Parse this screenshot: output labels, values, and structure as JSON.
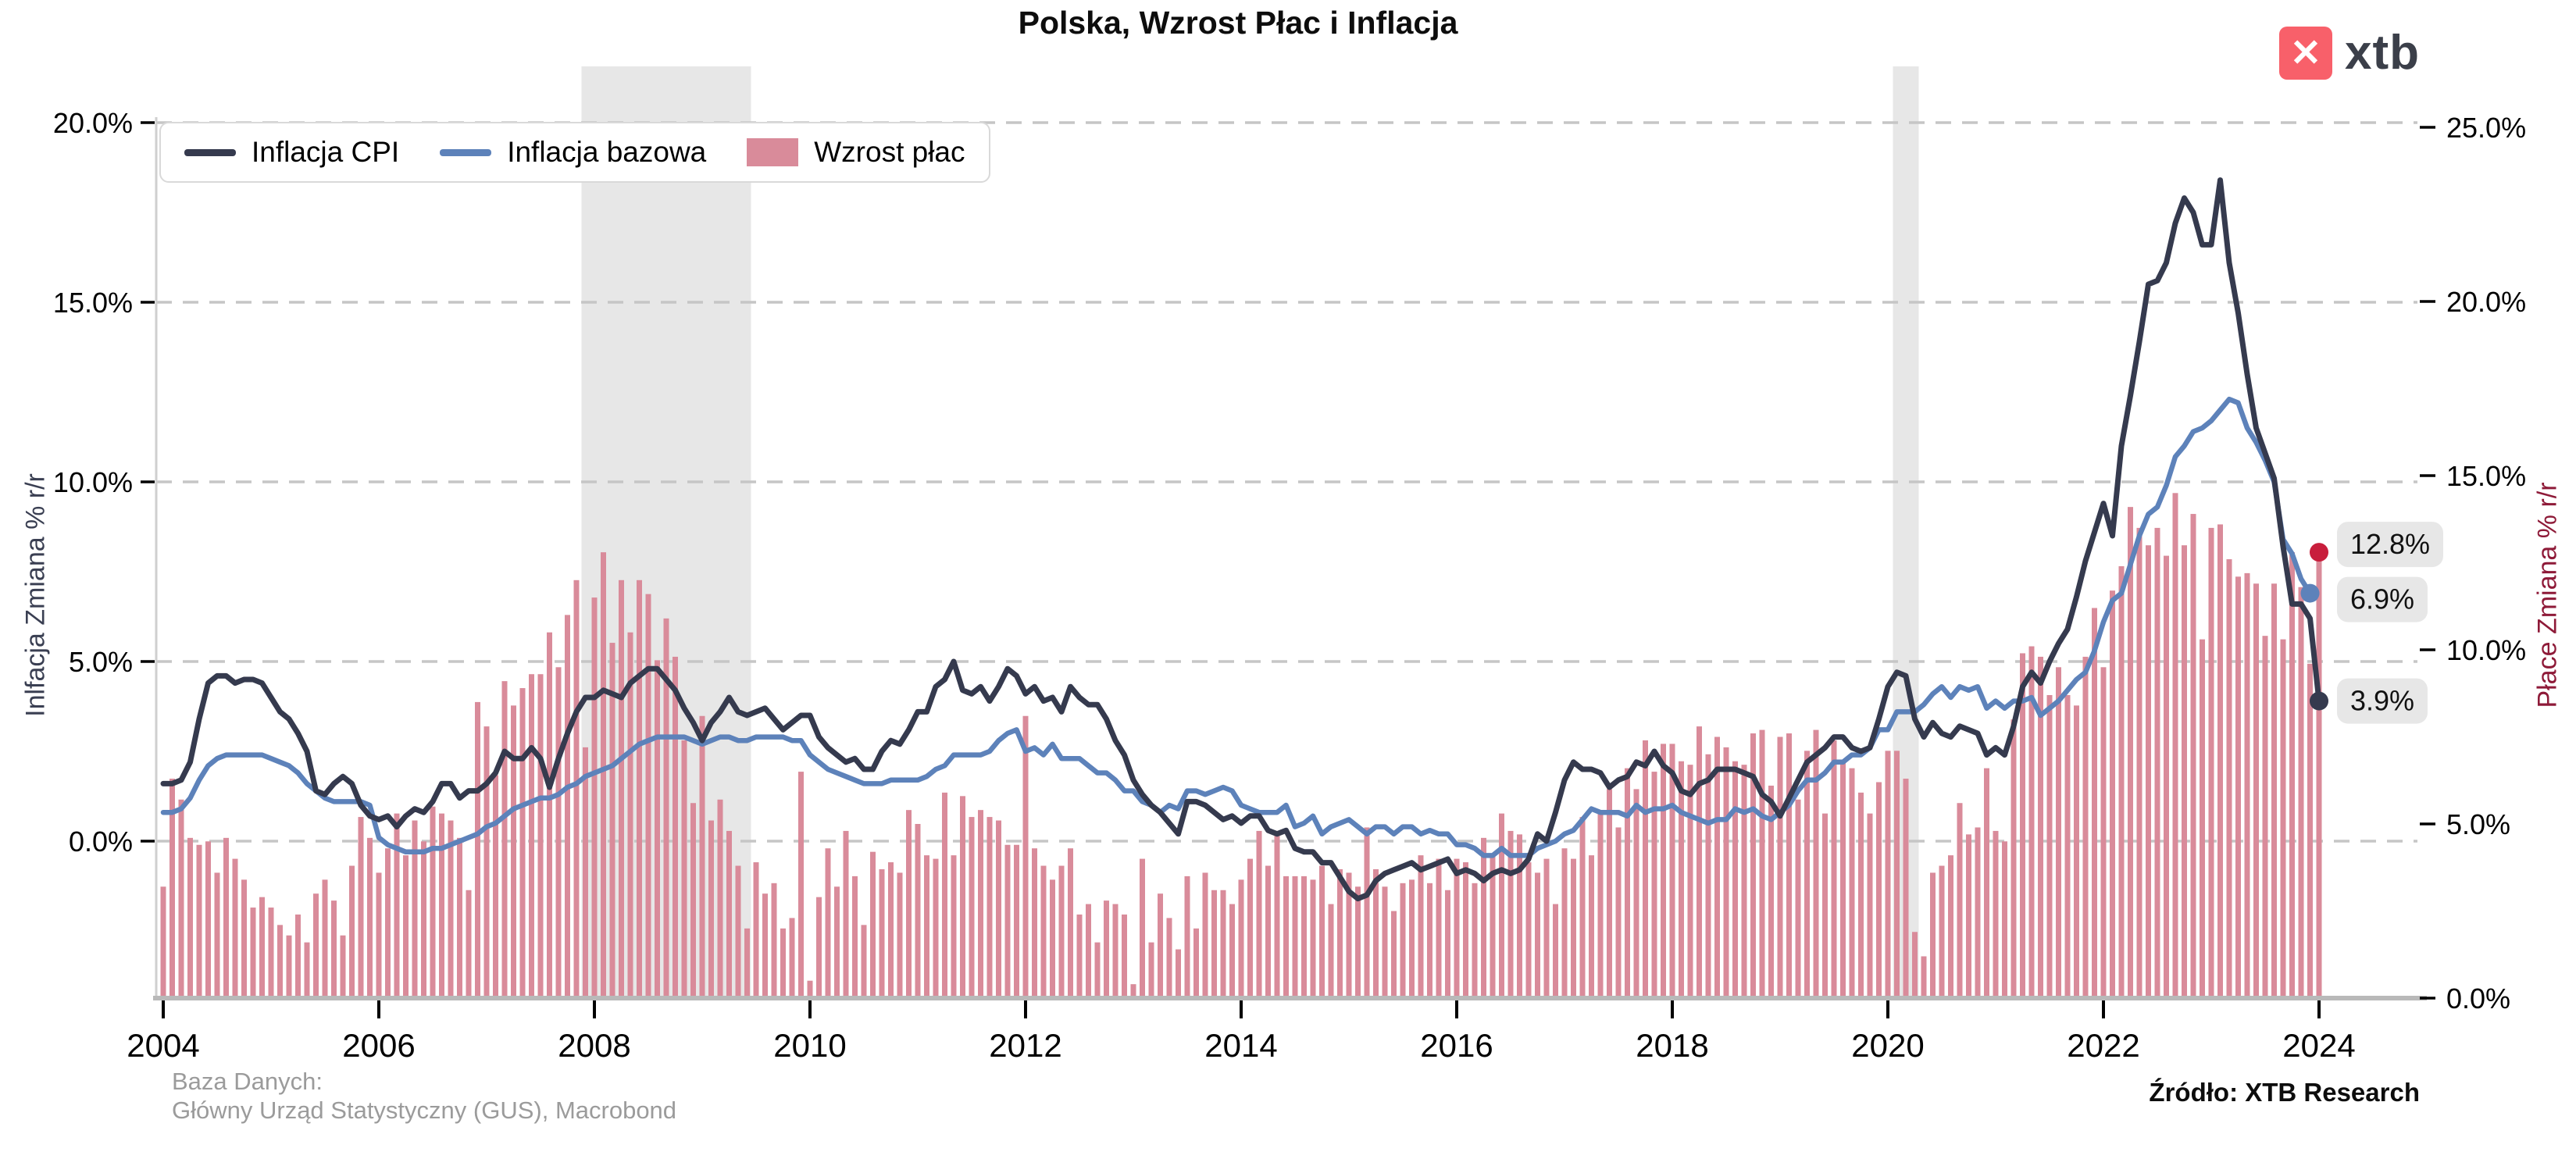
{
  "header": {
    "title": "Polska, Wzrost Płac i Inflacja",
    "logo_text": "xtb",
    "logo_color": "#f8606a",
    "logo_icon": "✕"
  },
  "legend": [
    {
      "label": "Inflacja CPI",
      "color": "#353a4e",
      "type": "line"
    },
    {
      "label": "Inflacja bazowa",
      "color": "#5d82ba",
      "type": "line"
    },
    {
      "label": "Wzrost płac",
      "color": "#d98b9a",
      "type": "bar"
    }
  ],
  "axes": {
    "left": {
      "title": "Inlfacja Zmiana % r/r",
      "title_color": "#3a3f52",
      "tick_labels": [
        "20.0%",
        "15.0%",
        "10.0%",
        "5.0%",
        "0.0%"
      ],
      "tick_values": [
        20,
        15,
        10,
        5,
        0
      ]
    },
    "right": {
      "title": "Płace Zmiana % r/r",
      "title_color": "#8e1a38",
      "tick_labels": [
        "25.0%",
        "20.0%",
        "15.0%",
        "10.0%",
        "5.0%",
        "0.0%"
      ],
      "tick_values": [
        25,
        20,
        15,
        10,
        5,
        0
      ]
    },
    "x": {
      "tick_labels": [
        "2004",
        "2006",
        "2008",
        "2010",
        "2012",
        "2014",
        "2016",
        "2018",
        "2020",
        "2022",
        "2024"
      ],
      "tick_values": [
        2004,
        2006,
        2008,
        2010,
        2012,
        2014,
        2016,
        2018,
        2020,
        2022,
        2024
      ]
    }
  },
  "annotations": [
    {
      "series": "Wzrost płac",
      "label": "12.8%",
      "value": 12.8,
      "axis": "right",
      "dot_color": "#c81e3c",
      "dy": -10
    },
    {
      "series": "Inflacja bazowa",
      "label": "6.9%",
      "value": 6.9,
      "axis": "left",
      "dot_color": "#5d82ba",
      "dy": 8
    },
    {
      "series": "Inflacja CPI",
      "label": "3.9%",
      "value": 3.9,
      "axis": "left",
      "dot_color": "#353a4e",
      "dy": 0
    }
  ],
  "footer": {
    "left_line1": "Baza Danych:",
    "left_line2": "Główny Urząd Statystyczny (GUS), Macrobond",
    "right": "Źródło: XTB Research"
  },
  "chart_data": {
    "type": "mixed",
    "title": "Polska, Wzrost Płac i Inflacja",
    "frequency": "monthly",
    "x_start": "2004-01",
    "x_end": "2024-01",
    "left_axis_label": "Inlfacja Zmiana % r/r",
    "right_axis_label": "Płace Zmiana % r/r",
    "left_axis_ticks": [
      0,
      5,
      10,
      15,
      20
    ],
    "right_axis_ticks": [
      0,
      5,
      10,
      15,
      20,
      25
    ],
    "grid": "horizontal-dashed",
    "legend_position": "top-left-inside",
    "recession_bands": [
      {
        "start": "2007-12",
        "end": "2009-06"
      },
      {
        "start": "2020-02",
        "end": "2020-04"
      }
    ],
    "series": [
      {
        "name": "Inflacja CPI",
        "type": "line",
        "axis": "left",
        "color": "#353a4e",
        "values": [
          1.6,
          1.6,
          1.7,
          2.2,
          3.4,
          4.4,
          4.6,
          4.6,
          4.4,
          4.5,
          4.5,
          4.4,
          4.0,
          3.6,
          3.4,
          3.0,
          2.5,
          1.4,
          1.3,
          1.6,
          1.8,
          1.6,
          1.0,
          0.7,
          0.6,
          0.7,
          0.4,
          0.7,
          0.9,
          0.8,
          1.1,
          1.6,
          1.6,
          1.2,
          1.4,
          1.4,
          1.6,
          1.9,
          2.5,
          2.3,
          2.3,
          2.6,
          2.3,
          1.5,
          2.3,
          3.0,
          3.6,
          4.0,
          4.0,
          4.2,
          4.1,
          4.0,
          4.4,
          4.6,
          4.8,
          4.8,
          4.5,
          4.2,
          3.7,
          3.3,
          2.8,
          3.3,
          3.6,
          4.0,
          3.6,
          3.5,
          3.6,
          3.7,
          3.4,
          3.1,
          3.3,
          3.5,
          3.5,
          2.9,
          2.6,
          2.4,
          2.2,
          2.3,
          2.0,
          2.0,
          2.5,
          2.8,
          2.7,
          3.1,
          3.6,
          3.6,
          4.3,
          4.5,
          5.0,
          4.2,
          4.1,
          4.3,
          3.9,
          4.3,
          4.8,
          4.6,
          4.1,
          4.3,
          3.9,
          4.0,
          3.6,
          4.3,
          4.0,
          3.8,
          3.8,
          3.4,
          2.8,
          2.4,
          1.7,
          1.3,
          1.0,
          0.8,
          0.5,
          0.2,
          1.1,
          1.1,
          1.0,
          0.8,
          0.6,
          0.7,
          0.5,
          0.7,
          0.7,
          0.3,
          0.2,
          0.3,
          -0.2,
          -0.3,
          -0.3,
          -0.6,
          -0.6,
          -1.0,
          -1.4,
          -1.6,
          -1.5,
          -1.1,
          -0.9,
          -0.8,
          -0.7,
          -0.6,
          -0.8,
          -0.7,
          -0.6,
          -0.5,
          -0.9,
          -0.8,
          -0.9,
          -1.1,
          -0.9,
          -0.8,
          -0.9,
          -0.8,
          -0.5,
          0.2,
          0.0,
          0.8,
          1.7,
          2.2,
          2.0,
          2.0,
          1.9,
          1.5,
          1.7,
          1.8,
          2.2,
          2.1,
          2.5,
          2.1,
          1.9,
          1.4,
          1.3,
          1.6,
          1.7,
          2.0,
          2.0,
          2.0,
          1.9,
          1.8,
          1.3,
          1.1,
          0.7,
          1.2,
          1.7,
          2.2,
          2.4,
          2.6,
          2.9,
          2.9,
          2.6,
          2.5,
          2.6,
          3.4,
          4.3,
          4.7,
          4.6,
          3.4,
          2.9,
          3.3,
          3.0,
          2.9,
          3.2,
          3.1,
          3.0,
          2.4,
          2.6,
          2.4,
          3.2,
          4.3,
          4.7,
          4.4,
          5.0,
          5.5,
          5.9,
          6.8,
          7.8,
          8.6,
          9.4,
          8.5,
          11.0,
          12.4,
          13.9,
          15.5,
          15.6,
          16.1,
          17.2,
          17.9,
          17.5,
          16.6,
          16.6,
          18.4,
          16.1,
          14.7,
          13.0,
          11.5,
          10.8,
          10.1,
          8.2,
          6.6,
          6.6,
          6.2,
          3.9
        ]
      },
      {
        "name": "Inflacja bazowa",
        "type": "line",
        "axis": "left",
        "color": "#5d82ba",
        "values": [
          0.8,
          0.8,
          0.9,
          1.2,
          1.7,
          2.1,
          2.3,
          2.4,
          2.4,
          2.4,
          2.4,
          2.4,
          2.3,
          2.2,
          2.1,
          1.9,
          1.6,
          1.4,
          1.2,
          1.1,
          1.1,
          1.1,
          1.1,
          1.0,
          0.1,
          -0.1,
          -0.2,
          -0.3,
          -0.3,
          -0.3,
          -0.2,
          -0.2,
          -0.1,
          0.0,
          0.1,
          0.2,
          0.4,
          0.5,
          0.7,
          0.9,
          1.0,
          1.1,
          1.2,
          1.2,
          1.3,
          1.5,
          1.6,
          1.8,
          1.9,
          2.0,
          2.1,
          2.3,
          2.5,
          2.7,
          2.8,
          2.9,
          2.9,
          2.9,
          2.9,
          2.8,
          2.7,
          2.8,
          2.9,
          2.9,
          2.8,
          2.8,
          2.9,
          2.9,
          2.9,
          2.9,
          2.8,
          2.8,
          2.4,
          2.2,
          2.0,
          1.9,
          1.8,
          1.7,
          1.6,
          1.6,
          1.6,
          1.7,
          1.7,
          1.7,
          1.7,
          1.8,
          2.0,
          2.1,
          2.4,
          2.4,
          2.4,
          2.4,
          2.5,
          2.8,
          3.0,
          3.1,
          2.5,
          2.6,
          2.4,
          2.7,
          2.3,
          2.3,
          2.3,
          2.1,
          1.9,
          1.9,
          1.7,
          1.4,
          1.4,
          1.1,
          1.0,
          0.8,
          1.0,
          0.9,
          1.4,
          1.4,
          1.3,
          1.4,
          1.5,
          1.4,
          1.0,
          0.9,
          0.8,
          0.8,
          0.8,
          1.0,
          0.4,
          0.5,
          0.7,
          0.2,
          0.4,
          0.5,
          0.6,
          0.4,
          0.2,
          0.4,
          0.4,
          0.2,
          0.4,
          0.4,
          0.2,
          0.3,
          0.2,
          0.2,
          -0.1,
          -0.1,
          -0.2,
          -0.4,
          -0.4,
          -0.2,
          -0.4,
          -0.4,
          -0.4,
          -0.2,
          -0.1,
          0.0,
          0.2,
          0.3,
          0.6,
          0.9,
          0.8,
          0.8,
          0.8,
          0.7,
          1.0,
          0.8,
          0.9,
          0.9,
          1.0,
          0.8,
          0.7,
          0.6,
          0.5,
          0.6,
          0.6,
          0.9,
          0.8,
          0.9,
          0.7,
          0.6,
          0.8,
          1.0,
          1.4,
          1.7,
          1.7,
          1.9,
          2.2,
          2.2,
          2.4,
          2.4,
          2.6,
          3.1,
          3.1,
          3.6,
          3.6,
          3.6,
          3.8,
          4.1,
          4.3,
          4.0,
          4.3,
          4.2,
          4.3,
          3.7,
          3.9,
          3.7,
          3.9,
          3.9,
          4.0,
          3.5,
          3.7,
          3.9,
          4.2,
          4.5,
          4.7,
          5.3,
          6.1,
          6.7,
          6.9,
          7.7,
          8.5,
          9.1,
          9.3,
          9.9,
          10.7,
          11.0,
          11.4,
          11.5,
          11.7,
          12.0,
          12.3,
          12.2,
          11.5,
          11.1,
          10.6,
          10.0,
          8.4,
          8.0,
          7.3,
          6.9
        ]
      },
      {
        "name": "Wzrost płac",
        "type": "bar",
        "axis": "right",
        "color": "#d98b9a",
        "values": [
          3.2,
          6.3,
          5.7,
          4.6,
          4.4,
          4.5,
          3.6,
          4.6,
          4.0,
          3.4,
          2.6,
          2.9,
          2.6,
          2.1,
          1.8,
          2.4,
          1.6,
          3.0,
          3.4,
          2.8,
          1.8,
          3.8,
          5.2,
          4.6,
          3.6,
          4.3,
          5.3,
          4.1,
          5.1,
          4.5,
          5.5,
          5.3,
          5.1,
          4.6,
          3.1,
          8.5,
          7.8,
          6.4,
          9.1,
          8.4,
          8.9,
          9.3,
          9.3,
          10.5,
          9.5,
          11.0,
          12.0,
          7.2,
          11.5,
          12.8,
          10.2,
          12.0,
          10.5,
          12.0,
          11.6,
          9.7,
          10.9,
          9.8,
          7.4,
          5.6,
          8.1,
          5.1,
          5.7,
          4.8,
          3.8,
          2.0,
          3.9,
          3.0,
          3.3,
          2.0,
          2.3,
          6.5,
          0.5,
          2.9,
          4.3,
          3.2,
          4.8,
          3.5,
          2.1,
          4.2,
          3.7,
          3.9,
          3.6,
          5.4,
          5.0,
          4.1,
          4.0,
          5.9,
          4.1,
          5.8,
          5.2,
          5.4,
          5.2,
          5.1,
          4.4,
          4.4,
          8.1,
          4.3,
          3.8,
          3.4,
          3.8,
          4.3,
          2.4,
          2.7,
          1.6,
          2.8,
          2.7,
          2.4,
          0.4,
          4.0,
          1.6,
          3.0,
          2.3,
          1.4,
          3.5,
          2.0,
          3.6,
          3.1,
          3.1,
          2.7,
          3.4,
          4.0,
          4.8,
          3.8,
          4.8,
          3.5,
          3.5,
          3.5,
          3.4,
          3.8,
          2.7,
          3.7,
          3.6,
          3.2,
          4.9,
          3.7,
          3.2,
          2.5,
          3.3,
          3.4,
          4.1,
          3.3,
          4.0,
          3.1,
          4.0,
          3.9,
          3.3,
          4.6,
          4.1,
          5.3,
          4.8,
          4.7,
          3.9,
          3.6,
          4.0,
          2.7,
          4.3,
          4.0,
          5.2,
          4.1,
          5.4,
          6.0,
          4.9,
          6.6,
          6.0,
          7.4,
          6.5,
          7.3,
          7.3,
          6.8,
          6.7,
          7.8,
          7.0,
          7.5,
          7.2,
          6.8,
          6.7,
          7.6,
          7.7,
          6.1,
          7.5,
          7.6,
          5.7,
          7.1,
          7.7,
          5.3,
          7.4,
          6.8,
          6.6,
          5.9,
          5.3,
          6.2,
          7.1,
          7.1,
          6.3,
          1.9,
          1.2,
          3.6,
          3.8,
          4.1,
          5.6,
          4.7,
          4.9,
          6.6,
          4.8,
          4.5,
          8.0,
          9.9,
          10.1,
          9.8,
          8.7,
          9.5,
          8.7,
          8.4,
          9.8,
          11.2,
          9.5,
          11.7,
          12.4,
          14.1,
          13.5,
          13.0,
          13.5,
          12.7,
          14.5,
          13.0,
          13.9,
          10.3,
          13.5,
          13.6,
          12.6,
          12.1,
          12.2,
          11.9,
          10.4,
          11.9,
          10.3,
          12.8,
          11.8,
          9.6,
          12.8
        ]
      }
    ]
  }
}
